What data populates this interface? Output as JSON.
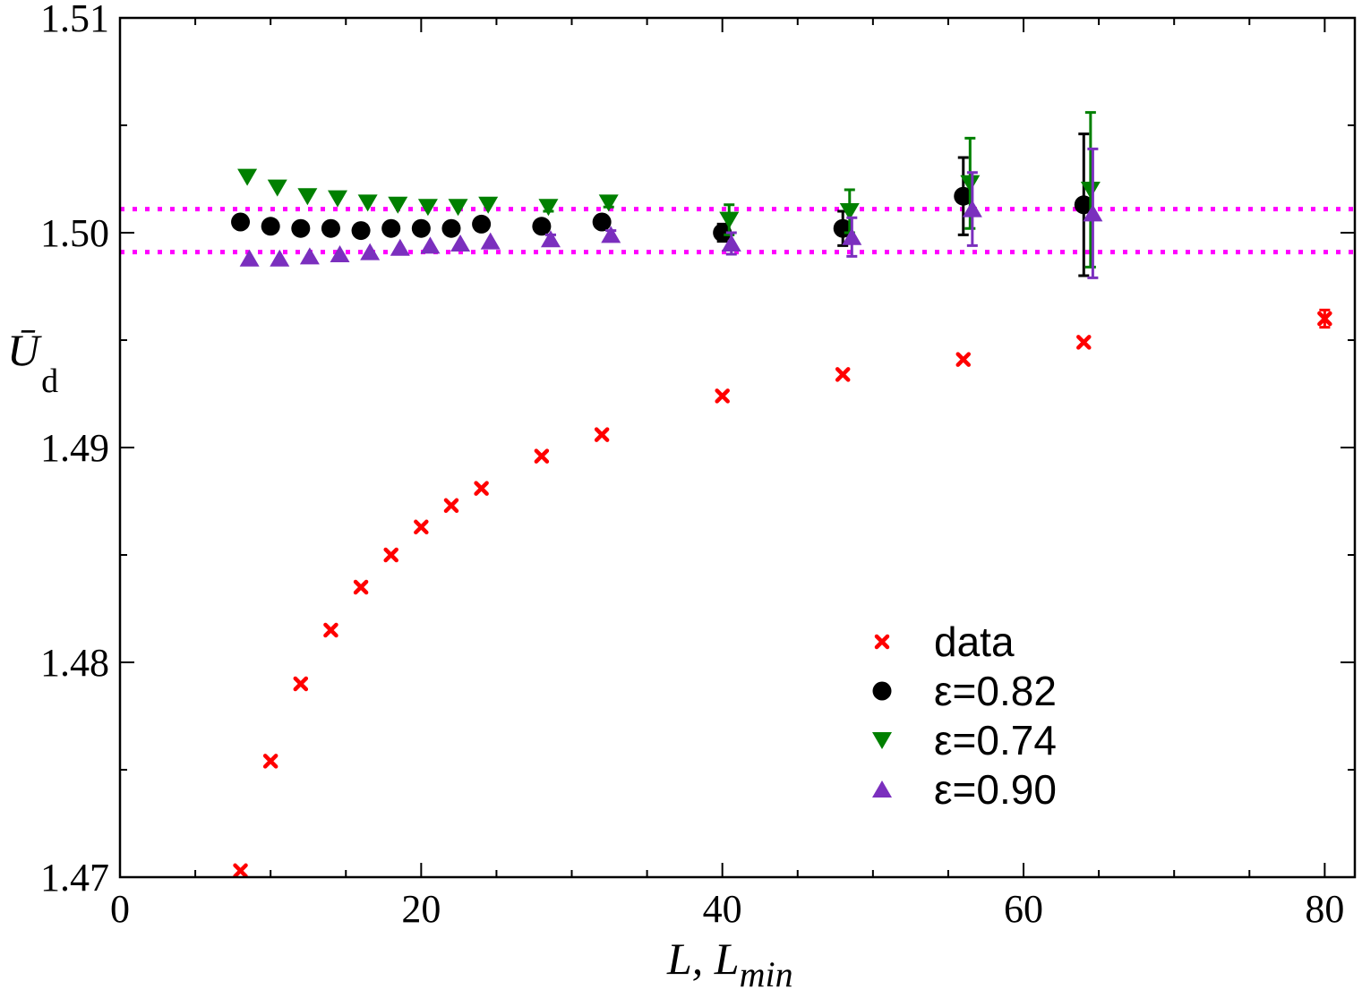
{
  "chart_data": {
    "type": "scatter",
    "xlabel": {
      "main": "L, L",
      "sub": "min"
    },
    "ylabel": {
      "main": "Ū",
      "sub": "d"
    },
    "xlim": [
      0,
      82
    ],
    "ylim": [
      1.47,
      1.51
    ],
    "xticks": [
      0,
      20,
      40,
      60,
      80
    ],
    "xtick_labels": [
      "0",
      "20",
      "40",
      "60",
      "80"
    ],
    "yticks": [
      1.47,
      1.48,
      1.49,
      1.5,
      1.51
    ],
    "ytick_labels": [
      "1.47",
      "1.48",
      "1.49",
      "1.50",
      "1.51"
    ],
    "grid": false,
    "legend_position": "lower-right",
    "reference_lines": {
      "y": [
        1.4991,
        1.5011
      ],
      "color": "#ff00ff",
      "style": "dotted"
    },
    "series": [
      {
        "name": "data",
        "marker": "x",
        "color": "#ff0000",
        "x": [
          8,
          10,
          12,
          14,
          16,
          18,
          20,
          22,
          24,
          28,
          32,
          40,
          48,
          56,
          64,
          80
        ],
        "y": [
          1.4703,
          1.4754,
          1.479,
          1.4815,
          1.4835,
          1.485,
          1.4863,
          1.4873,
          1.4881,
          1.4896,
          1.4906,
          1.4924,
          1.4934,
          1.4941,
          1.4949,
          1.496
        ],
        "err": [
          0,
          0,
          0,
          0,
          0,
          0,
          0,
          0,
          0,
          0,
          0,
          0,
          0,
          0,
          0,
          0.0004
        ]
      },
      {
        "name": "ε=0.82",
        "marker": "circle",
        "color": "#000000",
        "x": [
          8,
          10,
          12,
          14,
          16,
          18,
          20,
          22,
          24,
          28,
          32,
          40,
          48,
          56,
          64
        ],
        "y": [
          1.5005,
          1.5003,
          1.5002,
          1.5002,
          1.5001,
          1.5002,
          1.5002,
          1.5002,
          1.5004,
          1.5003,
          1.5005,
          1.5,
          1.5002,
          1.5017,
          1.5013
        ],
        "err": [
          0,
          0,
          0,
          0,
          0,
          0,
          0,
          0,
          0,
          0.0002,
          0.0002,
          0.0004,
          0.0008,
          0.0018,
          0.0033
        ]
      },
      {
        "name": "ε=0.74",
        "marker": "triangle-down",
        "color": "#008000",
        "x": [
          8,
          10,
          12,
          14,
          16,
          18,
          20,
          22,
          24,
          28,
          32,
          40,
          48,
          56,
          64
        ],
        "y": [
          1.5026,
          1.5021,
          1.5017,
          1.5016,
          1.5014,
          1.5013,
          1.5012,
          1.5012,
          1.5013,
          1.5012,
          1.5014,
          1.5006,
          1.501,
          1.5023,
          1.502
        ],
        "err": [
          0,
          0,
          0,
          0,
          0,
          0,
          0,
          0,
          0,
          0.0002,
          0.0002,
          0.0007,
          0.001,
          0.0021,
          0.0036
        ]
      },
      {
        "name": "ε=0.90",
        "marker": "triangle-up",
        "color": "#7b2fbe",
        "x": [
          8,
          10,
          12,
          14,
          16,
          18,
          20,
          22,
          24,
          28,
          32,
          40,
          48,
          56,
          64
        ],
        "y": [
          1.4988,
          1.4988,
          1.4989,
          1.499,
          1.4991,
          1.4993,
          1.4994,
          1.4995,
          1.4996,
          1.4997,
          1.4999,
          1.4995,
          1.4998,
          1.5011,
          1.5009
        ],
        "err": [
          0,
          0,
          0,
          0,
          0,
          0,
          0,
          0,
          0,
          0.0002,
          0.0002,
          0.0005,
          0.0009,
          0.0017,
          0.003
        ]
      }
    ]
  }
}
